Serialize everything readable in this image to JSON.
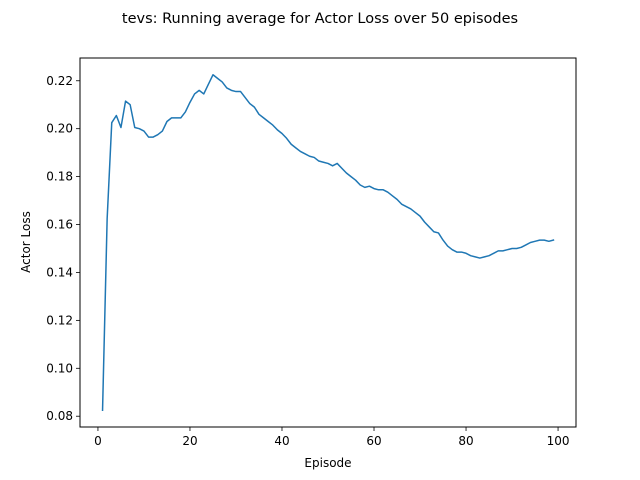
{
  "chart_data": {
    "type": "line",
    "title": "tevs: Running average for Actor Loss over 50 episodes",
    "xlabel": "Episode",
    "ylabel": "Actor Loss",
    "xlim": [
      -3.9,
      103.9
    ],
    "ylim": [
      0.0755,
      0.2295
    ],
    "xticks": [
      0,
      20,
      40,
      60,
      80,
      100
    ],
    "yticks": [
      0.08,
      0.1,
      0.12,
      0.14,
      0.16,
      0.18,
      0.2,
      0.22
    ],
    "ytick_labels": [
      "0.08",
      "0.10",
      "0.12",
      "0.14",
      "0.16",
      "0.18",
      "0.20",
      "0.22"
    ],
    "xtick_labels": [
      "0",
      "20",
      "40",
      "60",
      "80",
      "100"
    ],
    "grid": false,
    "line_color": "#1f77b4",
    "series": [
      {
        "x": [
          1,
          2,
          3,
          4,
          5,
          6,
          7,
          8,
          9,
          10,
          11,
          12,
          13,
          14,
          15,
          16,
          17,
          18,
          19,
          20,
          21,
          22,
          23,
          24,
          25,
          26,
          27,
          28,
          29,
          30,
          31,
          32,
          33,
          34,
          35,
          36,
          37,
          38,
          39,
          40,
          41,
          42,
          43,
          44,
          45,
          46,
          47,
          48,
          49,
          50,
          51,
          52,
          53,
          54,
          55,
          56,
          57,
          58,
          59,
          60,
          61,
          62,
          63,
          64,
          65,
          66,
          67,
          68,
          69,
          70,
          71,
          72,
          73,
          74,
          75,
          76,
          77,
          78,
          79,
          80,
          81,
          82,
          83,
          84,
          85,
          86,
          87,
          88,
          89,
          90,
          91,
          92,
          93,
          94,
          95,
          96,
          97,
          98,
          99
        ],
        "values": [
          0.0825,
          0.1625,
          0.2025,
          0.2055,
          0.2005,
          0.2115,
          0.21,
          0.2005,
          0.2,
          0.199,
          0.1965,
          0.1965,
          0.1975,
          0.199,
          0.203,
          0.2045,
          0.2045,
          0.2045,
          0.207,
          0.211,
          0.2145,
          0.216,
          0.2145,
          0.2185,
          0.2225,
          0.221,
          0.2195,
          0.217,
          0.216,
          0.2155,
          0.2155,
          0.213,
          0.2105,
          0.209,
          0.206,
          0.2045,
          0.203,
          0.2015,
          0.1995,
          0.198,
          0.196,
          0.1935,
          0.192,
          0.1905,
          0.1895,
          0.1885,
          0.188,
          0.1865,
          0.186,
          0.1855,
          0.1845,
          0.1855,
          0.1835,
          0.1815,
          0.18,
          0.1785,
          0.1765,
          0.1755,
          0.176,
          0.175,
          0.1745,
          0.1745,
          0.1735,
          0.172,
          0.1705,
          0.1685,
          0.1675,
          0.1665,
          0.165,
          0.1635,
          0.161,
          0.159,
          0.157,
          0.1565,
          0.1535,
          0.151,
          0.1495,
          0.1485,
          0.1485,
          0.148,
          0.147,
          0.1465,
          0.146,
          0.1465,
          0.147,
          0.148,
          0.149,
          0.149,
          0.1495,
          0.15,
          0.15,
          0.1505,
          0.1515,
          0.1525,
          0.153,
          0.1535,
          0.1535,
          0.153,
          0.1535
        ]
      }
    ]
  }
}
